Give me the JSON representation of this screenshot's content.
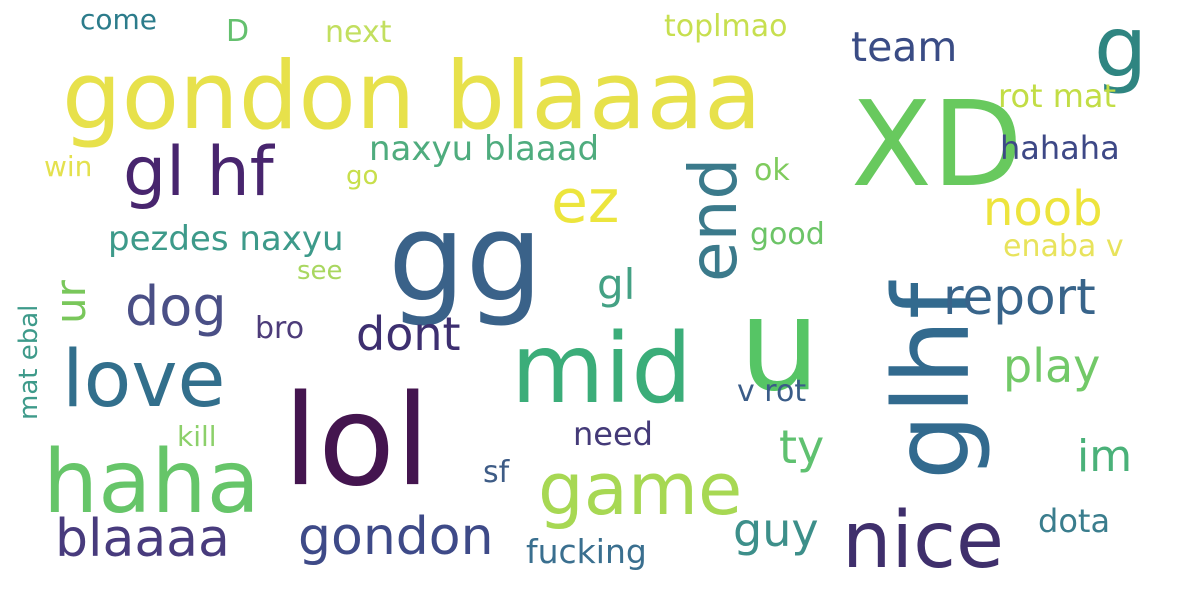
{
  "words": [
    {
      "text": "lol",
      "color": "#44154f"
    },
    {
      "text": "gg",
      "color": "#3a6289"
    },
    {
      "text": "u",
      "color": "#56c565"
    },
    {
      "text": "XD",
      "color": "#68c95e"
    },
    {
      "text": "gondon blaaaa",
      "color": "#e7e14b"
    },
    {
      "text": "mid",
      "color": "#3bad79"
    },
    {
      "text": "glhf",
      "color": "#326a8e"
    },
    {
      "text": "haha",
      "color": "#66c569"
    },
    {
      "text": "gl hf",
      "color": "#48256e"
    },
    {
      "text": "love",
      "color": "#326f8c"
    },
    {
      "text": "nice",
      "color": "#3f2f6c"
    },
    {
      "text": "game",
      "color": "#a7d853"
    },
    {
      "text": "end",
      "color": "#3b7a8b"
    },
    {
      "text": "ez",
      "color": "#ece53d"
    },
    {
      "text": "g",
      "color": "#2f8581"
    },
    {
      "text": "gondon",
      "color": "#3e4a88"
    },
    {
      "text": "blaaaa",
      "color": "#483b7d"
    },
    {
      "text": "team",
      "color": "#3a4c85"
    },
    {
      "text": "report",
      "color": "#38648a"
    },
    {
      "text": "noob",
      "color": "#ede43d"
    },
    {
      "text": "dog",
      "color": "#4a4f86"
    },
    {
      "text": "dont",
      "color": "#3d2f70"
    },
    {
      "text": "play",
      "color": "#72c968"
    },
    {
      "text": "guy",
      "color": "#3d8f8a"
    },
    {
      "text": "ty",
      "color": "#5fc170"
    },
    {
      "text": "im",
      "color": "#4ab179"
    },
    {
      "text": "ur",
      "color": "#79c75b"
    },
    {
      "text": "gl",
      "color": "#44a184"
    },
    {
      "text": "naxyu blaaad",
      "color": "#4fac7e"
    },
    {
      "text": "pezdes naxyu",
      "color": "#3d9a8a"
    },
    {
      "text": "fucking",
      "color": "#3a6f8f"
    },
    {
      "text": "dota",
      "color": "#3a7d8d"
    },
    {
      "text": "hahaha",
      "color": "#3d4886"
    },
    {
      "text": "rot mat",
      "color": "#c2dd45"
    },
    {
      "text": "toplmao",
      "color": "#c7df4f"
    },
    {
      "text": "next",
      "color": "#c2df5f"
    },
    {
      "text": "come",
      "color": "#2c7c8b"
    },
    {
      "text": "D",
      "color": "#64c06e"
    },
    {
      "text": "win",
      "color": "#e4e14e"
    },
    {
      "text": "go",
      "color": "#c8df4b"
    },
    {
      "text": "ok",
      "color": "#7fcb5d"
    },
    {
      "text": "good",
      "color": "#6cc467"
    },
    {
      "text": "enaba v",
      "color": "#e8e35c"
    },
    {
      "text": "see",
      "color": "#a9d760"
    },
    {
      "text": "bro",
      "color": "#4d3c7a"
    },
    {
      "text": "v rot",
      "color": "#3a5c88"
    },
    {
      "text": "need",
      "color": "#443a78"
    },
    {
      "text": "kill",
      "color": "#8cd06a"
    },
    {
      "text": "sf",
      "color": "#3e5c86"
    },
    {
      "text": "mat ebal",
      "color": "#3e9a8a"
    }
  ]
}
